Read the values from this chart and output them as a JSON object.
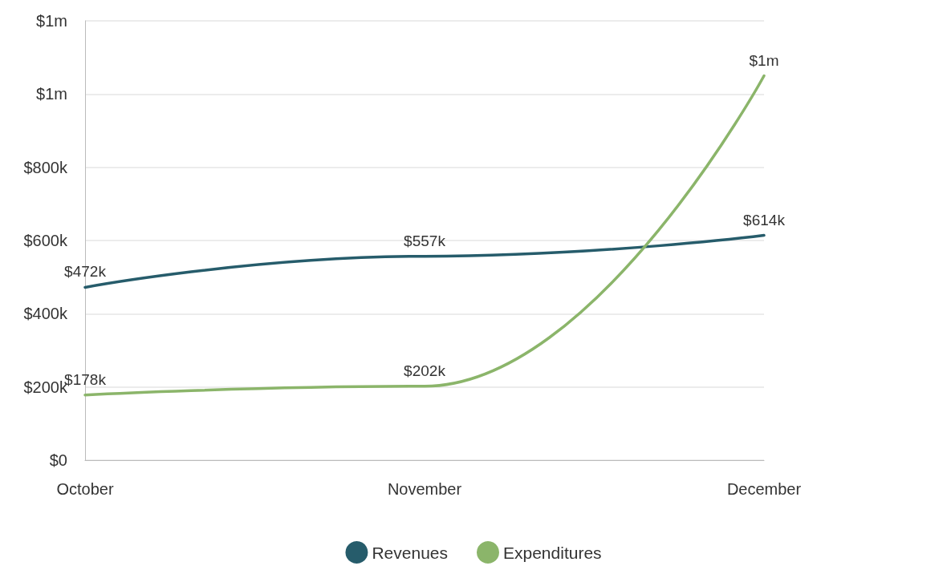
{
  "chart_data": {
    "type": "line",
    "categories": [
      "October",
      "November",
      "December"
    ],
    "series": [
      {
        "name": "Revenues",
        "color": "#265c6b",
        "values": [
          472000,
          557000,
          614000
        ],
        "value_labels": [
          "$472k",
          "$557k",
          "$614k"
        ]
      },
      {
        "name": "Expenditures",
        "color": "#8bb56a",
        "values": [
          178000,
          202000,
          1050000
        ],
        "value_labels": [
          "$178k",
          "$202k",
          "$1m"
        ]
      }
    ],
    "ylim": [
      0,
      1200000
    ],
    "yticks": [
      {
        "value": 0,
        "label": "$0"
      },
      {
        "value": 200000,
        "label": "$200k"
      },
      {
        "value": 400000,
        "label": "$400k"
      },
      {
        "value": 600000,
        "label": "$600k"
      },
      {
        "value": 800000,
        "label": "$800k"
      },
      {
        "value": 1000000,
        "label": "$1m"
      },
      {
        "value": 1200000,
        "label": "$1m"
      }
    ],
    "grid": "y",
    "legend": "bottom",
    "marker": "none",
    "line_style": "solid"
  }
}
